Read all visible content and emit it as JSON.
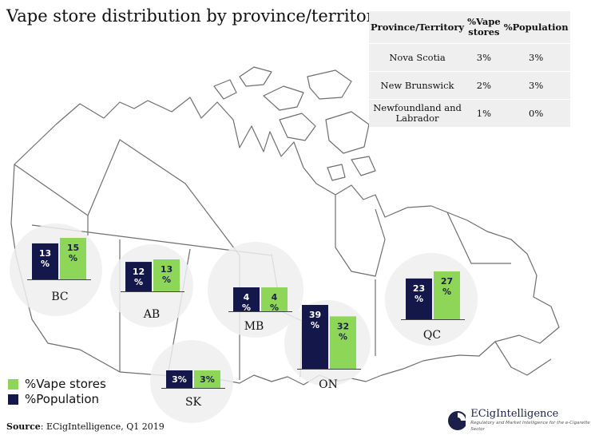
{
  "title": "Vape store distribution by province/territory",
  "colors": {
    "vape": "#8ed657",
    "population": "#14174a",
    "circle": "#eeeeee",
    "map_stroke": "#6e6e6e"
  },
  "legend": [
    {
      "label": "%Vape stores",
      "color": "#8ed657"
    },
    {
      "label": "%Population",
      "color": "#14174a"
    }
  ],
  "table": {
    "headers": [
      "Province/Territory",
      "%Vape stores",
      "%Population"
    ],
    "rows": [
      {
        "province": "Nova Scotia",
        "vape": "3%",
        "population": "3%"
      },
      {
        "province": "New Brunswick",
        "vape": "2%",
        "population": "3%"
      },
      {
        "province": "Newfoundland and Labrador",
        "vape": "1%",
        "population": "0%"
      }
    ]
  },
  "chart_data": {
    "type": "bar",
    "categories": [
      "BC",
      "AB",
      "SK",
      "MB",
      "ON",
      "QC"
    ],
    "series": [
      {
        "name": "%Population",
        "values": [
          13,
          12,
          3,
          4,
          39,
          23
        ]
      },
      {
        "name": "%Vape stores",
        "values": [
          15,
          13,
          3,
          4,
          32,
          27
        ]
      }
    ],
    "unit": "%",
    "legend_position": "bottom-left"
  },
  "source": {
    "label": "Source",
    "text": ": ECigIntelligence, Q1 2019"
  },
  "logo": {
    "name": "ECigIntelligence",
    "tagline": "Regulatory and Market Intelligence for the e-Cigarette Sector"
  }
}
